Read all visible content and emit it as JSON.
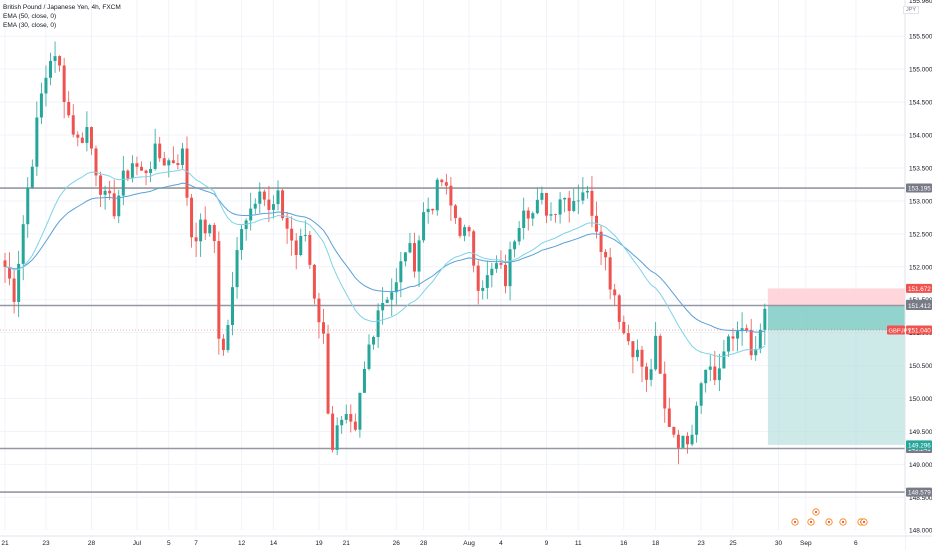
{
  "legend": {
    "title": "British Pound / Japanese Yen, 4h, FXCM",
    "ema1": "EMA (50, close, 0)",
    "ema2": "EMA (30, close, 0)"
  },
  "symbol_badge": "JPY",
  "colors": {
    "up": "#26a69a",
    "down": "#ef5350",
    "ema50": "#5aa0d8",
    "ema30": "#7ed3e6",
    "hline": "#9598a1",
    "target_zone": "#b2dfdb",
    "target_zone_dark": "#80cbc4",
    "stop_zone": "#ffcdd2",
    "price_tag": "#ef5350",
    "level_tag": "#787b86",
    "axis_text": "#131722",
    "event_marker": "#f57c00"
  },
  "chart_data": {
    "type": "candlestick",
    "title": "British Pound / Japanese Yen, 4h, FXCM",
    "symbol": "GBPJPY",
    "timeframe": "4h",
    "ylim": [
      147.7,
      156.05
    ],
    "y_ticks": [
      148.0,
      148.5,
      149.0,
      149.5,
      150.0,
      150.5,
      151.0,
      151.5,
      152.0,
      152.5,
      153.0,
      153.5,
      154.0,
      154.5,
      155.0,
      155.5
    ],
    "y_tick_labels": [
      "148.000",
      "148.500",
      "149.000",
      "149.500",
      "150.000",
      "150.500",
      "151.000",
      "151.500",
      "152.000",
      "152.500",
      "153.000",
      "153.500",
      "154.000",
      "154.500",
      "155.000",
      "155.500"
    ],
    "x_ticks": [
      {
        "label": "21",
        "bar": 0
      },
      {
        "label": "23",
        "bar": 9
      },
      {
        "label": "28",
        "bar": 19
      },
      {
        "label": "Jul",
        "bar": 29
      },
      {
        "label": "5",
        "bar": 36
      },
      {
        "label": "7",
        "bar": 42
      },
      {
        "label": "12",
        "bar": 52
      },
      {
        "label": "14",
        "bar": 59
      },
      {
        "label": "19",
        "bar": 69
      },
      {
        "label": "21",
        "bar": 75
      },
      {
        "label": "26",
        "bar": 86
      },
      {
        "label": "28",
        "bar": 92
      },
      {
        "label": "Aug",
        "bar": 102
      },
      {
        "label": "4",
        "bar": 109
      },
      {
        "label": "9",
        "bar": 119
      },
      {
        "label": "11",
        "bar": 126
      },
      {
        "label": "16",
        "bar": 136
      },
      {
        "label": "18",
        "bar": 143
      },
      {
        "label": "23",
        "bar": 153
      },
      {
        "label": "25",
        "bar": 160
      },
      {
        "label": "30",
        "bar": 170
      },
      {
        "label": "Sep",
        "bar": 176
      },
      {
        "label": "6",
        "bar": 187
      }
    ],
    "price_anchors": [
      [
        0,
        152.0
      ],
      [
        2,
        151.6
      ],
      [
        5,
        153.2
      ],
      [
        8,
        154.6
      ],
      [
        10,
        155.2
      ],
      [
        12,
        155.0
      ],
      [
        14,
        154.3
      ],
      [
        16,
        153.9
      ],
      [
        18,
        154.1
      ],
      [
        20,
        153.5
      ],
      [
        22,
        153.0
      ],
      [
        24,
        152.9
      ],
      [
        26,
        153.3
      ],
      [
        28,
        153.6
      ],
      [
        30,
        153.4
      ],
      [
        33,
        153.7
      ],
      [
        36,
        153.6
      ],
      [
        39,
        153.7
      ],
      [
        41,
        152.5
      ],
      [
        44,
        152.6
      ],
      [
        46,
        152.4
      ],
      [
        47,
        151.0
      ],
      [
        48,
        150.7
      ],
      [
        50,
        151.6
      ],
      [
        51,
        152.2
      ],
      [
        52,
        152.7
      ],
      [
        54,
        152.9
      ],
      [
        56,
        153.3
      ],
      [
        58,
        152.8
      ],
      [
        60,
        153.0
      ],
      [
        62,
        152.6
      ],
      [
        64,
        152.2
      ],
      [
        66,
        152.5
      ],
      [
        68,
        151.6
      ],
      [
        70,
        150.9
      ],
      [
        71,
        149.9
      ],
      [
        72,
        149.3
      ],
      [
        73,
        149.5
      ],
      [
        75,
        149.6
      ],
      [
        77,
        149.4
      ],
      [
        78,
        150.0
      ],
      [
        80,
        150.8
      ],
      [
        82,
        151.4
      ],
      [
        84,
        151.6
      ],
      [
        86,
        151.7
      ],
      [
        88,
        152.3
      ],
      [
        90,
        152.1
      ],
      [
        92,
        152.8
      ],
      [
        94,
        153.0
      ],
      [
        96,
        153.3
      ],
      [
        98,
        152.9
      ],
      [
        100,
        152.6
      ],
      [
        102,
        152.4
      ],
      [
        104,
        151.8
      ],
      [
        106,
        151.8
      ],
      [
        108,
        152.0
      ],
      [
        110,
        151.8
      ],
      [
        112,
        152.5
      ],
      [
        114,
        153.0
      ],
      [
        116,
        152.8
      ],
      [
        118,
        153.0
      ],
      [
        120,
        152.8
      ],
      [
        122,
        153.1
      ],
      [
        124,
        153.0
      ],
      [
        126,
        153.1
      ],
      [
        127,
        153.2
      ],
      [
        129,
        152.9
      ],
      [
        131,
        152.4
      ],
      [
        133,
        151.8
      ],
      [
        134,
        151.6
      ],
      [
        136,
        151.0
      ],
      [
        138,
        150.8
      ],
      [
        140,
        150.5
      ],
      [
        141,
        150.2
      ],
      [
        143,
        150.8
      ],
      [
        145,
        149.8
      ],
      [
        147,
        149.5
      ],
      [
        149,
        149.3
      ],
      [
        151,
        149.6
      ],
      [
        152,
        150.0
      ],
      [
        154,
        150.6
      ],
      [
        156,
        150.3
      ],
      [
        158,
        150.7
      ],
      [
        160,
        150.9
      ],
      [
        162,
        151.2
      ],
      [
        164,
        150.6
      ],
      [
        166,
        150.9
      ],
      [
        167,
        151.3
      ]
    ],
    "ema_series": [
      {
        "name": "EMA (50, close, 0)",
        "period": 50
      },
      {
        "name": "EMA (30, close, 0)",
        "period": 30
      }
    ],
    "horizontal_levels": [
      153.195,
      151.412,
      149.241,
      148.579
    ],
    "current_price": {
      "symbol": "GBPJPY",
      "value": 151.04,
      "label": "151.040"
    },
    "price_labels": [
      {
        "value": 153.195,
        "label": "153.195",
        "kind": "level"
      },
      {
        "value": 151.672,
        "label": "151.672",
        "kind": "stop"
      },
      {
        "value": 151.431,
        "label": "151.431",
        "kind": "level"
      },
      {
        "value": 151.412,
        "label": "151.412",
        "kind": "level"
      },
      {
        "value": 151.04,
        "label": "151.040",
        "kind": "current"
      },
      {
        "value": 149.241,
        "label": "149.241",
        "kind": "level"
      },
      {
        "value": 149.296,
        "label": "149.296",
        "kind": "target"
      },
      {
        "value": 148.579,
        "label": "148.579",
        "kind": "level"
      }
    ],
    "position": {
      "type": "short",
      "start_bar": 167,
      "end_bar": 194,
      "entry": 151.412,
      "stop": 151.672,
      "target": 149.296
    },
    "top_axis_label": "155.960"
  }
}
